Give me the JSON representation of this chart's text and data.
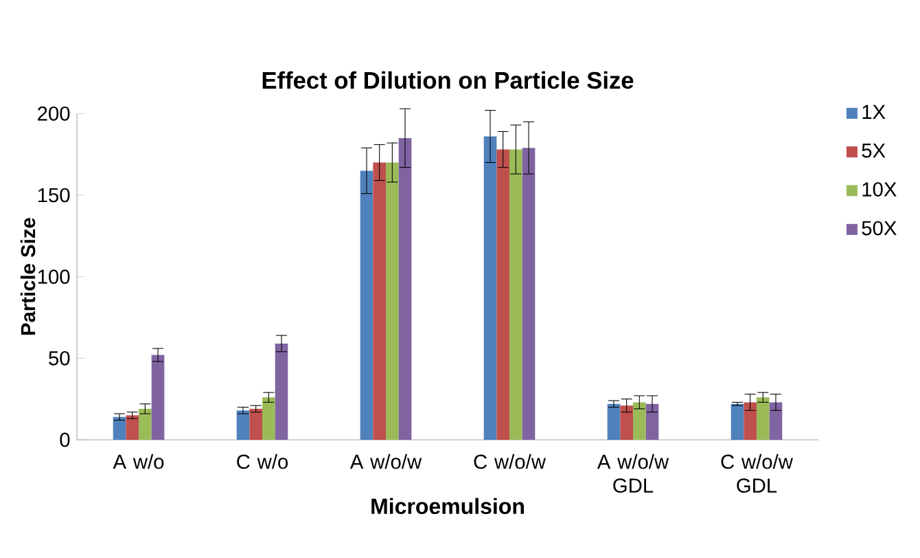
{
  "chart_data": {
    "type": "bar",
    "title": "Effect of Dilution on Particle Size",
    "xlabel": "Microemulsion",
    "ylabel": "Particle Size",
    "categories": [
      "A w/o",
      "C w/o",
      "A w/o/w",
      "C w/o/w",
      "A w/o/w GDL",
      "C w/o/w GDL"
    ],
    "series": [
      {
        "name": "1X",
        "color": "#4f81bd",
        "values": [
          14,
          18,
          165,
          186,
          22,
          22
        ],
        "errors": [
          2,
          2,
          14,
          16,
          2,
          1
        ]
      },
      {
        "name": "5X",
        "color": "#c0504d",
        "values": [
          15,
          19,
          170,
          178,
          21,
          23
        ],
        "errors": [
          2,
          2,
          11,
          11,
          4,
          5
        ]
      },
      {
        "name": "10X",
        "color": "#9bbb59",
        "values": [
          19,
          26,
          170,
          178,
          23,
          26
        ],
        "errors": [
          3,
          3,
          12,
          15,
          4,
          3
        ]
      },
      {
        "name": "50X",
        "color": "#8064a2",
        "values": [
          52,
          59,
          185,
          179,
          22,
          23
        ],
        "errors": [
          4,
          5,
          18,
          16,
          5,
          5
        ]
      }
    ],
    "ylim": [
      0,
      200
    ],
    "yticks": [
      0,
      50,
      100,
      150,
      200
    ],
    "grid": false,
    "legend": "right"
  }
}
